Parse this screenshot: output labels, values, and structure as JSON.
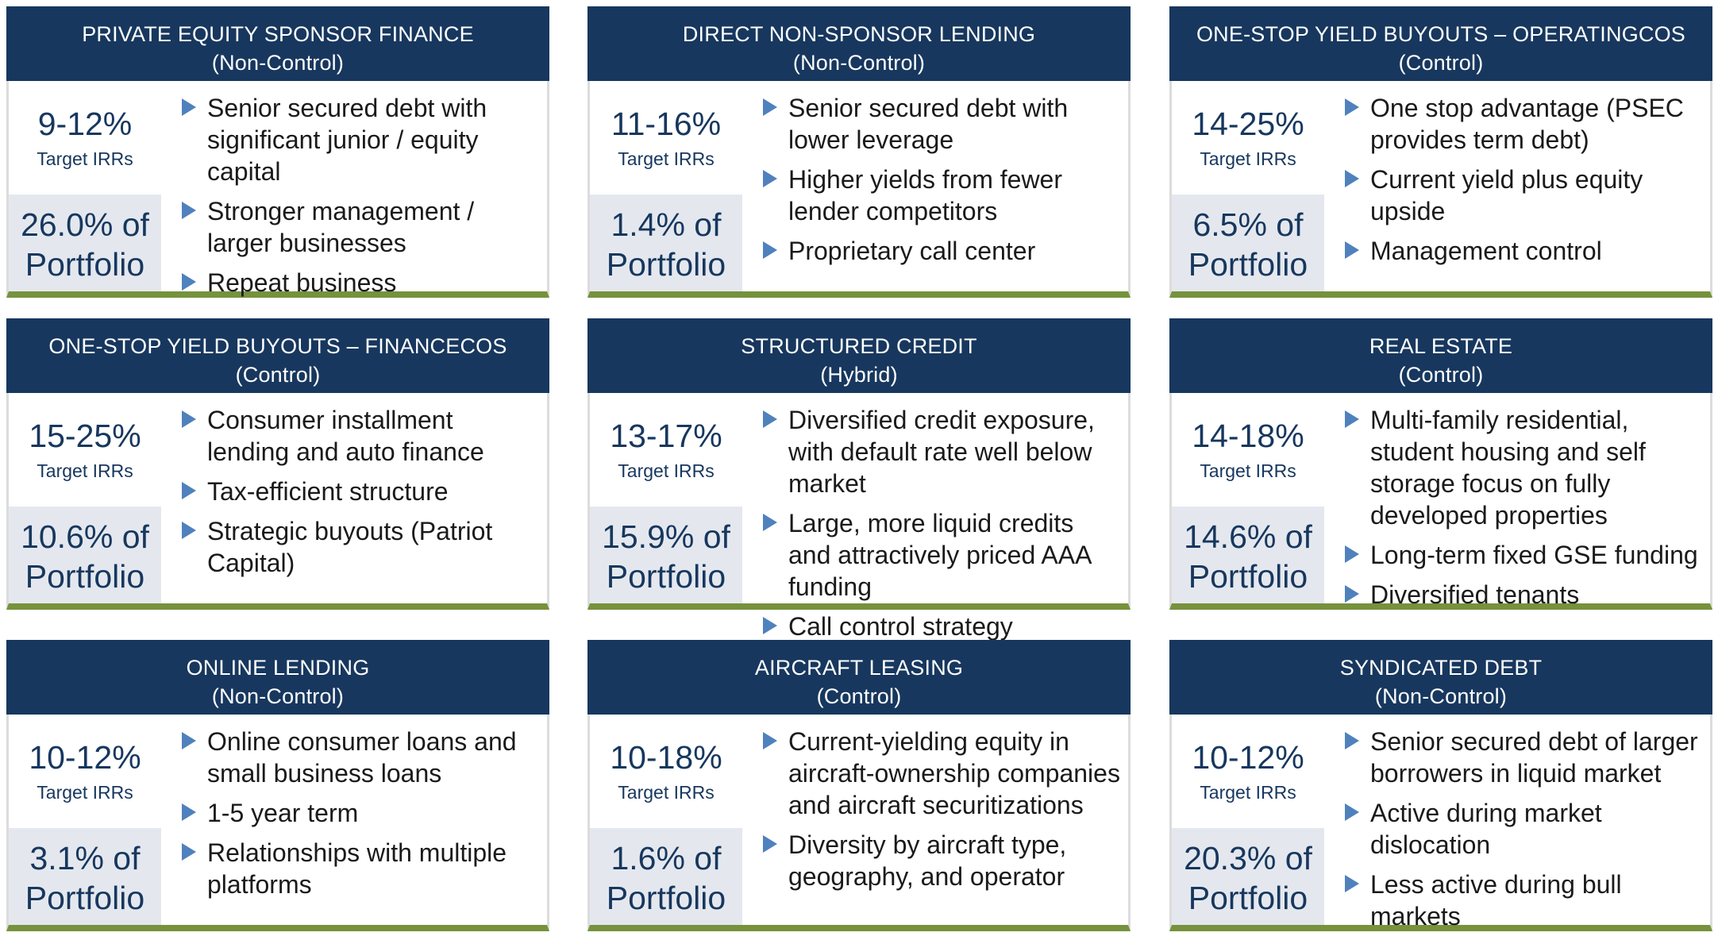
{
  "cards": [
    {
      "title": "PRIVATE EQUITY SPONSOR FINANCE",
      "subtitle": "(Non-Control)",
      "irr": "9-12%",
      "irr_label": "Target IRRs",
      "portfolio_pct": "26.0% of",
      "portfolio_label": "Portfolio",
      "bullets": [
        "Senior secured debt with significant junior / equity capital",
        "Stronger management / larger businesses",
        "Repeat business"
      ]
    },
    {
      "title": "DIRECT NON-SPONSOR LENDING",
      "subtitle": "(Non-Control)",
      "irr": "11-16%",
      "irr_label": "Target IRRs",
      "portfolio_pct": "1.4% of",
      "portfolio_label": "Portfolio",
      "bullets": [
        "Senior secured debt with lower leverage",
        "Higher yields from fewer lender competitors",
        "Proprietary call center"
      ]
    },
    {
      "title": "ONE-STOP YIELD BUYOUTS – OPERATINGCOS",
      "subtitle": "(Control)",
      "irr": "14-25%",
      "irr_label": "Target IRRs",
      "portfolio_pct": "6.5% of",
      "portfolio_label": "Portfolio",
      "bullets": [
        "One stop advantage (PSEC provides term debt)",
        "Current yield plus equity upside",
        "Management control"
      ]
    },
    {
      "title": "ONE-STOP YIELD BUYOUTS – FINANCECOS",
      "subtitle": "(Control)",
      "irr": "15-25%",
      "irr_label": "Target IRRs",
      "portfolio_pct": "10.6% of",
      "portfolio_label": "Portfolio",
      "bullets": [
        "Consumer installment lending and auto finance",
        "Tax-efficient structure",
        "Strategic buyouts (Patriot Capital)"
      ]
    },
    {
      "title": "STRUCTURED CREDIT",
      "subtitle": "(Hybrid)",
      "irr": "13-17%",
      "irr_label": "Target IRRs",
      "portfolio_pct": "15.9% of",
      "portfolio_label": "Portfolio",
      "bullets": [
        "Diversified credit exposure, with default rate well below market",
        "Large, more liquid credits and attractively priced AAA funding",
        "Call control strategy"
      ]
    },
    {
      "title": "REAL ESTATE",
      "subtitle": "(Control)",
      "irr": "14-18%",
      "irr_label": "Target IRRs",
      "portfolio_pct": "14.6% of",
      "portfolio_label": "Portfolio",
      "bullets": [
        "Multi-family residential, student housing and self storage focus on fully developed properties",
        "Long-term fixed GSE funding",
        "Diversified tenants"
      ]
    },
    {
      "title": "ONLINE LENDING",
      "subtitle": "(Non-Control)",
      "irr": "10-12%",
      "irr_label": "Target IRRs",
      "portfolio_pct": "3.1% of",
      "portfolio_label": "Portfolio",
      "bullets": [
        "Online consumer loans and small business loans",
        "1-5 year term",
        "Relationships with multiple platforms"
      ]
    },
    {
      "title": "AIRCRAFT LEASING",
      "subtitle": "(Control)",
      "irr": "10-18%",
      "irr_label": "Target IRRs",
      "portfolio_pct": "1.6% of",
      "portfolio_label": "Portfolio",
      "bullets": [
        "Current-yielding equity in aircraft-ownership companies and aircraft securitizations",
        "Diversity by aircraft type, geography, and operator"
      ]
    },
    {
      "title": "SYNDICATED DEBT",
      "subtitle": "(Non-Control)",
      "irr": "10-12%",
      "irr_label": "Target IRRs",
      "portfolio_pct": "20.3% of",
      "portfolio_label": "Portfolio",
      "bullets": [
        "Senior secured debt of larger borrowers in liquid market",
        "Active during market dislocation",
        "Less active during bull markets"
      ]
    }
  ]
}
